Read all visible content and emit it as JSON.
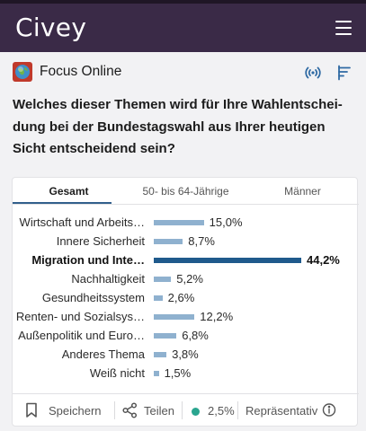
{
  "app": {
    "brand": "Civey"
  },
  "publisher": {
    "name": "Focus Online"
  },
  "question": "Welches dieser Themen wird für Ihre Wahlentschei­dung bei der Bundestagswahl aus Ihrer heutigen Sicht entscheidend sein?",
  "tabs": [
    {
      "label": "Gesamt",
      "active": true
    },
    {
      "label": "50- bis 64-Jährige",
      "active": false
    },
    {
      "label": "Männer",
      "active": false
    }
  ],
  "chart_data": {
    "type": "bar",
    "categories": [
      "Wirtschaft und Arbeits…",
      "Innere Sicherheit",
      "Migration und Inte…",
      "Nachhaltigkeit",
      "Gesundheitssystem",
      "Renten- und Sozialsys…",
      "Außenpolitik und Euro…",
      "Anderes Thema",
      "Weiß nicht"
    ],
    "values": [
      15.0,
      8.7,
      44.2,
      5.2,
      2.6,
      12.2,
      6.8,
      3.8,
      1.5
    ],
    "value_labels": [
      "15,0%",
      "8,7%",
      "44,2%",
      "5,2%",
      "2,6%",
      "12,2%",
      "6,8%",
      "3,8%",
      "1,5%"
    ],
    "highlight_index": 2,
    "bar_color": "#8fb1cf",
    "highlight_color": "#1f5a8c"
  },
  "footer": {
    "save_label": "Speichern",
    "share_label": "Teilen",
    "margin_value": "2,5%",
    "representative_label": "Repräsentativ",
    "status_color": "#2aa58f"
  },
  "colors": {
    "header_bg": "#3a2a47",
    "accent": "#33608c",
    "icon_blue": "#2f6aa3"
  }
}
